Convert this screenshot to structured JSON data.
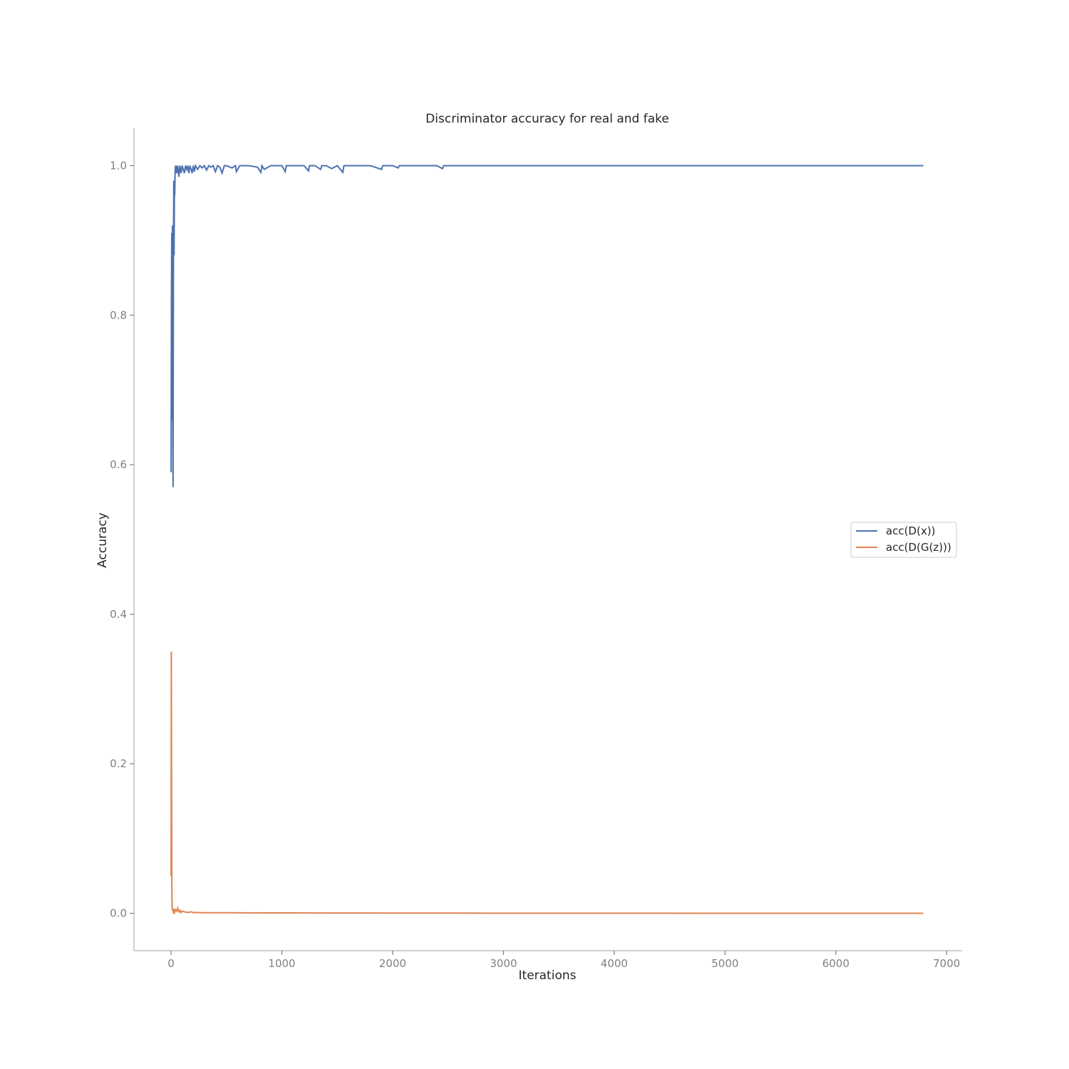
{
  "chart_data": {
    "type": "line",
    "title": "Discriminator accuracy for real and fake",
    "xlabel": "Iterations",
    "ylabel": "Accuracy",
    "xlim": [
      -335,
      7140
    ],
    "ylim": [
      -0.05,
      1.05
    ],
    "xticks": [
      0,
      1000,
      2000,
      3000,
      4000,
      5000,
      6000,
      7000
    ],
    "xtick_labels": [
      "0",
      "1000",
      "2000",
      "3000",
      "4000",
      "5000",
      "6000",
      "7000"
    ],
    "yticks": [
      0.0,
      0.2,
      0.4,
      0.6,
      0.8,
      1.0
    ],
    "ytick_labels": [
      "0.0",
      "0.2",
      "0.4",
      "0.6",
      "0.8",
      "1.0"
    ],
    "grid": false,
    "legend_position": "center-right",
    "series": [
      {
        "name": "acc(D(x))",
        "color": "#4c72b0",
        "x": [
          0,
          3,
          6,
          9,
          12,
          15,
          18,
          21,
          24,
          27,
          30,
          33,
          36,
          39,
          42,
          45,
          50,
          55,
          60,
          70,
          80,
          90,
          100,
          110,
          120,
          130,
          140,
          150,
          160,
          170,
          180,
          190,
          200,
          210,
          220,
          240,
          260,
          280,
          300,
          320,
          340,
          360,
          380,
          400,
          420,
          440,
          460,
          480,
          500,
          550,
          580,
          590,
          620,
          700,
          780,
          810,
          820,
          840,
          900,
          1000,
          1030,
          1040,
          1100,
          1200,
          1240,
          1250,
          1300,
          1350,
          1360,
          1400,
          1450,
          1500,
          1550,
          1560,
          1600,
          1700,
          1800,
          1900,
          1910,
          2000,
          2050,
          2060,
          2200,
          2400,
          2450,
          2460,
          2600,
          2800,
          3000,
          3200,
          3400,
          3600,
          3800,
          4000,
          4200,
          4400,
          4600,
          4800,
          5000,
          5200,
          5400,
          5600,
          5800,
          6000,
          6200,
          6400,
          6600,
          6790
        ],
        "y": [
          0.59,
          0.82,
          0.91,
          0.66,
          0.92,
          0.71,
          0.57,
          0.85,
          0.98,
          0.88,
          0.97,
          0.96,
          0.99,
          1.0,
          0.99,
          1.0,
          0.995,
          0.99,
          1.0,
          0.985,
          1.0,
          0.99,
          1.0,
          0.995,
          0.99,
          1.0,
          0.995,
          1.0,
          0.99,
          1.0,
          0.995,
          0.99,
          1.0,
          0.992,
          1.0,
          0.995,
          1.0,
          0.997,
          1.0,
          0.994,
          1.0,
          0.998,
          1.0,
          0.992,
          1.0,
          0.998,
          0.99,
          1.0,
          1.0,
          0.997,
          1.0,
          0.992,
          1.0,
          1.0,
          0.998,
          0.991,
          1.0,
          0.995,
          1.0,
          1.0,
          0.992,
          1.0,
          1.0,
          1.0,
          0.993,
          1.0,
          1.0,
          0.995,
          1.0,
          1.0,
          0.996,
          1.0,
          0.991,
          1.0,
          1.0,
          1.0,
          1.0,
          0.995,
          1.0,
          1.0,
          0.997,
          1.0,
          1.0,
          1.0,
          0.996,
          1.0,
          1.0,
          1.0,
          1.0,
          1.0,
          1.0,
          1.0,
          1.0,
          1.0,
          1.0,
          1.0,
          1.0,
          1.0,
          1.0,
          1.0,
          1.0,
          1.0,
          1.0,
          1.0,
          1.0,
          1.0,
          1.0,
          1.0
        ]
      },
      {
        "name": "acc(D(G(z)))",
        "color": "#dd8452",
        "x": [
          0,
          2,
          4,
          6,
          8,
          10,
          12,
          15,
          20,
          25,
          30,
          40,
          50,
          60,
          70,
          80,
          90,
          100,
          120,
          150,
          180,
          200,
          250,
          300,
          400,
          500,
          700,
          1000,
          1500,
          2000,
          3000,
          4000,
          5000,
          6000,
          6790
        ],
        "y": [
          0.05,
          0.35,
          0.2,
          0.06,
          0.02,
          0.008,
          0.004,
          0.006,
          0.002,
          0.004,
          0.001,
          0.005,
          0.003,
          0.007,
          0.002,
          0.004,
          0.001,
          0.003,
          0.002,
          0.001,
          0.002,
          0.001,
          0.001,
          0.0008,
          0.0008,
          0.0007,
          0.0006,
          0.0005,
          0.0004,
          0.0003,
          0.0002,
          0.0002,
          0.0001,
          0.0001,
          0.0001
        ]
      }
    ]
  }
}
